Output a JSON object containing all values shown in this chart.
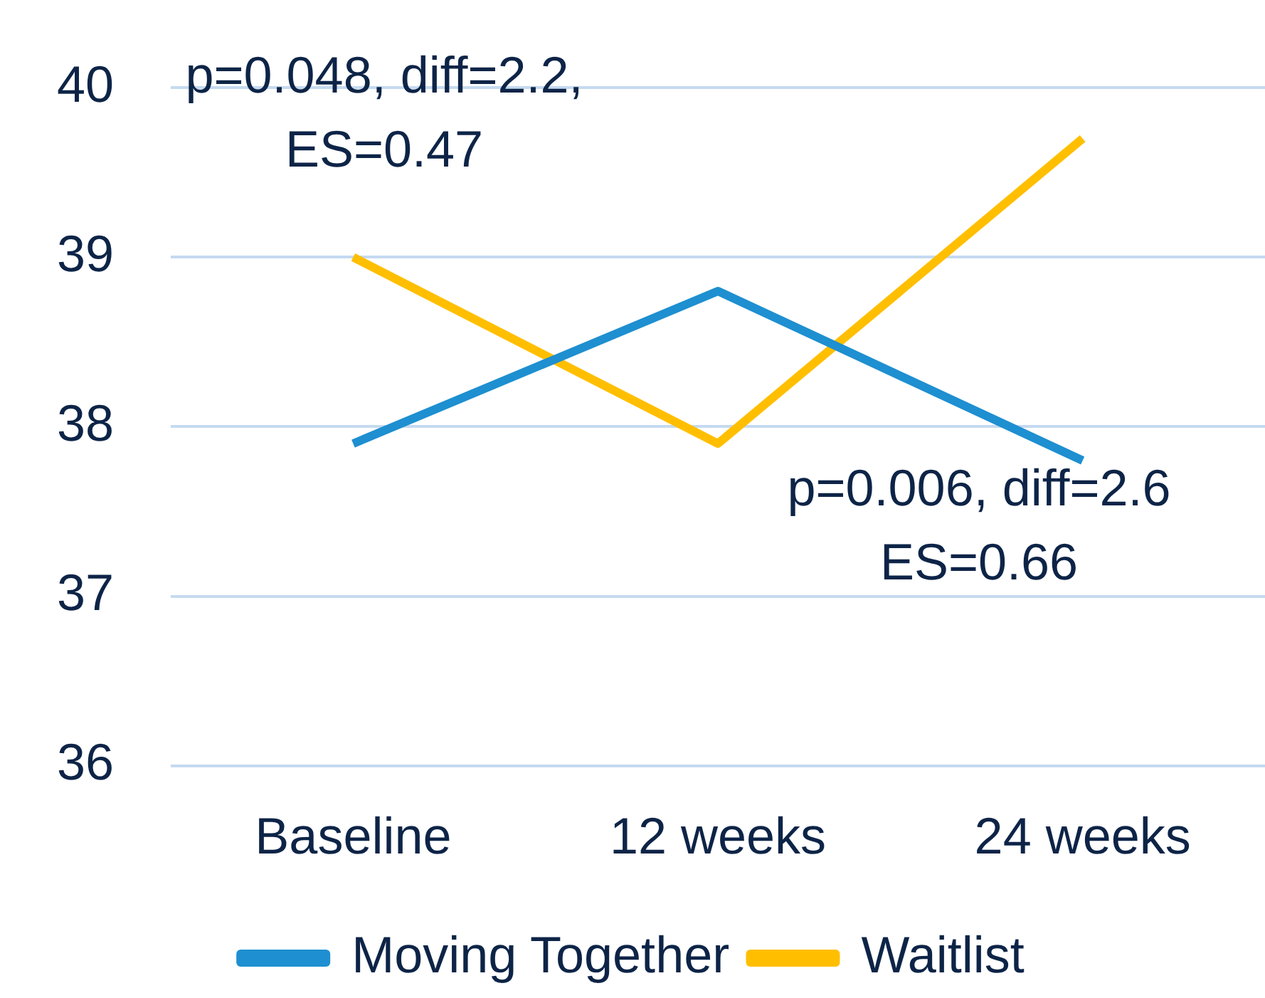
{
  "chart_data": {
    "type": "line",
    "categories": [
      "Baseline",
      "12 weeks",
      "24 weeks"
    ],
    "series": [
      {
        "name": "Moving Together",
        "color": "#1e8fd0",
        "values": [
          37.9,
          38.8,
          37.8
        ]
      },
      {
        "name": "Waitlist",
        "color": "#ffbf00",
        "values": [
          39.0,
          37.9,
          39.7
        ]
      }
    ],
    "ylim": [
      36,
      40
    ],
    "yticks": [
      36,
      37,
      38,
      39,
      40
    ],
    "grid": "y",
    "legend": "bottom",
    "marker": "none",
    "line_style": "solid",
    "annotations": [
      "p=0.048, diff=2.2,\nES=0.47",
      "p=0.006, diff=2.6\nES=0.66"
    ]
  }
}
